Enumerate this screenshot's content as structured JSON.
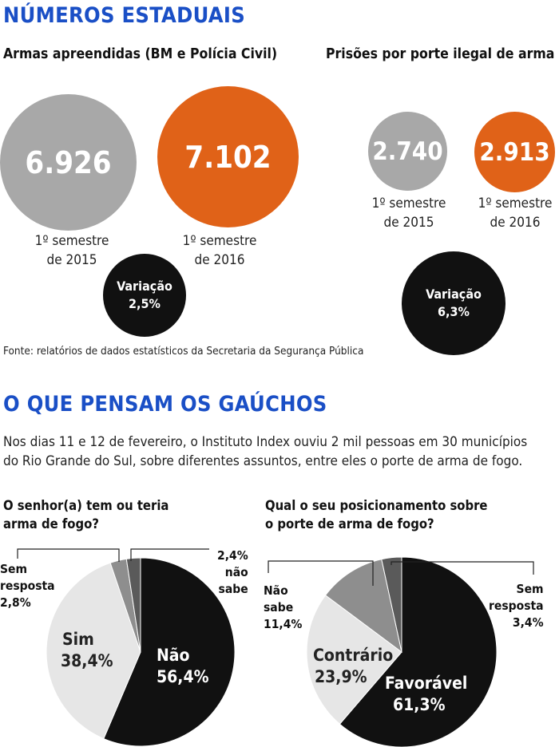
{
  "colors": {
    "gray": "#a8a8a8",
    "orange": "#e06218",
    "black": "#111111",
    "light": "#e6e6e6",
    "mid": "#8e8e8e",
    "dark": "#5a5a5a",
    "accent": "#1a4fc6"
  },
  "section1": {
    "title": "NÚMEROS ESTADUAIS",
    "left": {
      "subtitle": "Armas apreendidas (BM e Polícia Civil)",
      "a": {
        "value": "6.926",
        "cap1": "1º semestre",
        "cap2": "de 2015"
      },
      "b": {
        "value": "7.102",
        "cap1": "1º semestre",
        "cap2": "de 2016"
      },
      "variation": {
        "label": "Variação",
        "value": "2,5%"
      }
    },
    "right": {
      "subtitle": "Prisões por porte ilegal de arma",
      "a": {
        "value": "2.740",
        "cap1": "1º semestre",
        "cap2": "de 2015"
      },
      "b": {
        "value": "2.913",
        "cap1": "1º semestre",
        "cap2": "de 2016"
      },
      "variation": {
        "label": "Variação",
        "value": "6,3%"
      }
    },
    "source": "Fonte: relatórios de dados estatísticos da Secretaria da Segurança Pública"
  },
  "section2": {
    "title": "O QUE PENSAM OS GAÚCHOS",
    "intro1": "Nos dias 11 e 12 de fevereiro, o Instituto Index ouviu 2 mil pessoas em 30 municípios",
    "intro2": "do Rio Grande do Sul, sobre diferentes assuntos, entre eles o porte de arma de fogo.",
    "q1": {
      "line1": "O senhor(a) tem ou teria",
      "line2": "arma de fogo?"
    },
    "q2": {
      "line1": "Qual o seu posicionamento sobre",
      "line2": "o porte de arma de fogo?"
    }
  },
  "chart_data": [
    {
      "type": "bar",
      "title": "Armas apreendidas (BM e Polícia Civil)",
      "categories": [
        "1º semestre de 2015",
        "1º semestre de 2016"
      ],
      "values": [
        6926,
        7102
      ],
      "annotations": [
        "Variação 2,5%"
      ]
    },
    {
      "type": "bar",
      "title": "Prisões por porte ilegal de arma",
      "categories": [
        "1º semestre de 2015",
        "1º semestre de 2016"
      ],
      "values": [
        2740,
        2913
      ],
      "annotations": [
        "Variação 6,3%"
      ]
    },
    {
      "type": "pie",
      "title": "O senhor(a) tem ou teria arma de fogo?",
      "slices": [
        {
          "label": "Não",
          "value": 56.4,
          "text": "56,4%",
          "color": "#111111"
        },
        {
          "label": "Sim",
          "value": 38.4,
          "text": "38,4%",
          "color": "#e6e6e6"
        },
        {
          "label": "Sem resposta",
          "value": 2.8,
          "text": "2,8%",
          "color": "#8e8e8e"
        },
        {
          "label": "não sabe",
          "value": 2.4,
          "text": "2,4%",
          "color": "#5a5a5a"
        }
      ]
    },
    {
      "type": "pie",
      "title": "Qual o seu posicionamento sobre o porte de arma de fogo?",
      "slices": [
        {
          "label": "Favorável",
          "value": 61.3,
          "text": "61,3%",
          "color": "#111111"
        },
        {
          "label": "Contrário",
          "value": 23.9,
          "text": "23,9%",
          "color": "#e6e6e6"
        },
        {
          "label": "Não sabe",
          "value": 11.4,
          "text": "11,4%",
          "color": "#8e8e8e"
        },
        {
          "label": "Sem resposta",
          "value": 3.4,
          "text": "3,4%",
          "color": "#5a5a5a"
        }
      ]
    }
  ]
}
